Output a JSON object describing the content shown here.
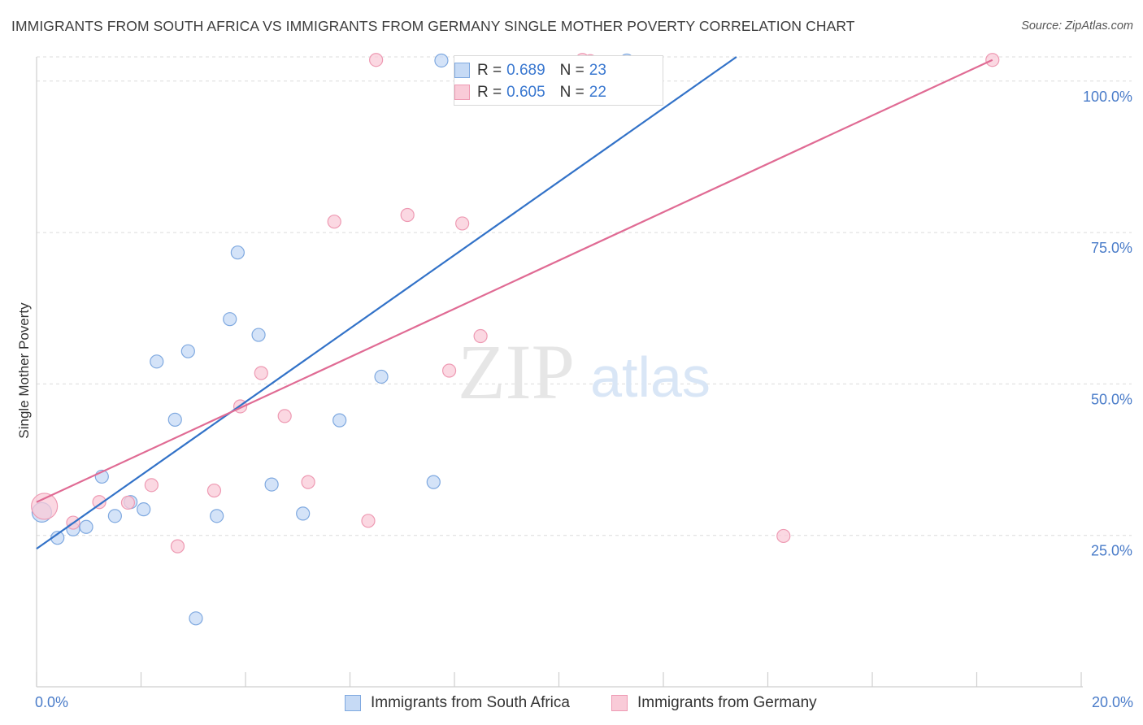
{
  "header": {
    "title": "IMMIGRANTS FROM SOUTH AFRICA VS IMMIGRANTS FROM GERMANY SINGLE MOTHER POVERTY CORRELATION CHART",
    "source": "Source: ZipAtlas.com"
  },
  "watermark": {
    "zip": "ZIP",
    "atlas": "atlas"
  },
  "legend_top": {
    "rows": [
      {
        "r_label": "R = ",
        "r_value": "0.689",
        "n_label": "N = ",
        "n_value": "23"
      },
      {
        "r_label": "R = ",
        "r_value": "0.605",
        "n_label": "N = ",
        "n_value": "22"
      }
    ]
  },
  "colors": {
    "blue_fill": "#c6daf5",
    "blue_stroke": "#7fa9e0",
    "blue_line": "#3272c8",
    "pink_fill": "#f9cbd8",
    "pink_stroke": "#ee9ab3",
    "pink_line": "#e06b94",
    "tick_text": "#4a7cc9",
    "grid": "#dcdcdc"
  },
  "chart_data": {
    "type": "scatter",
    "title": "IMMIGRANTS FROM SOUTH AFRICA VS IMMIGRANTS FROM GERMANY SINGLE MOTHER POVERTY CORRELATION CHART",
    "xlabel": "",
    "ylabel": "Single Mother Poverty",
    "xlim": [
      0,
      20
    ],
    "ylim": [
      0,
      104
    ],
    "x_ticks": [
      0,
      2,
      4,
      6,
      8,
      10,
      12,
      14,
      16,
      18,
      20
    ],
    "x_tick_labels": [
      {
        "value": 0,
        "label": "0.0%"
      },
      {
        "value": 20,
        "label": "20.0%"
      }
    ],
    "y_ticks": [
      {
        "value": 25,
        "label": "25.0%"
      },
      {
        "value": 50,
        "label": "50.0%"
      },
      {
        "value": 75,
        "label": "75.0%"
      },
      {
        "value": 100,
        "label": "100.0%"
      }
    ],
    "grid": true,
    "legend_placement": "top-center",
    "series": [
      {
        "name": "Immigrants from South Africa",
        "color": "#7fa9e0",
        "R": 0.689,
        "N": 23,
        "trend": {
          "x": [
            0,
            13.4
          ],
          "y": [
            22.8,
            104
          ]
        },
        "points": [
          {
            "x": 0.1,
            "y": 28.8,
            "size": 12
          },
          {
            "x": 0.4,
            "y": 24.6
          },
          {
            "x": 0.7,
            "y": 26.0
          },
          {
            "x": 0.95,
            "y": 26.4
          },
          {
            "x": 1.25,
            "y": 34.7
          },
          {
            "x": 1.5,
            "y": 28.2
          },
          {
            "x": 1.8,
            "y": 30.5
          },
          {
            "x": 2.05,
            "y": 29.3
          },
          {
            "x": 2.3,
            "y": 53.7
          },
          {
            "x": 2.65,
            "y": 44.1
          },
          {
            "x": 2.9,
            "y": 55.4
          },
          {
            "x": 3.05,
            "y": 11.3
          },
          {
            "x": 3.45,
            "y": 28.2
          },
          {
            "x": 3.7,
            "y": 60.7
          },
          {
            "x": 3.85,
            "y": 71.7
          },
          {
            "x": 4.25,
            "y": 58.1
          },
          {
            "x": 4.5,
            "y": 33.4
          },
          {
            "x": 5.1,
            "y": 28.6
          },
          {
            "x": 5.8,
            "y": 44.0
          },
          {
            "x": 6.6,
            "y": 51.2
          },
          {
            "x": 7.6,
            "y": 33.8
          },
          {
            "x": 7.75,
            "y": 103.4
          },
          {
            "x": 11.3,
            "y": 103.4
          }
        ]
      },
      {
        "name": "Immigrants from Germany",
        "color": "#ee9ab3",
        "R": 0.605,
        "N": 22,
        "trend": {
          "x": [
            0,
            18.3
          ],
          "y": [
            30.5,
            103.5
          ]
        },
        "points": [
          {
            "x": 0.15,
            "y": 29.8,
            "size": 16
          },
          {
            "x": 0.7,
            "y": 27.1
          },
          {
            "x": 1.2,
            "y": 30.5
          },
          {
            "x": 1.75,
            "y": 30.4
          },
          {
            "x": 2.2,
            "y": 33.3
          },
          {
            "x": 2.7,
            "y": 23.2
          },
          {
            "x": 3.4,
            "y": 32.4
          },
          {
            "x": 3.9,
            "y": 46.3
          },
          {
            "x": 4.3,
            "y": 51.8
          },
          {
            "x": 4.75,
            "y": 44.7
          },
          {
            "x": 5.2,
            "y": 33.8
          },
          {
            "x": 5.7,
            "y": 76.8
          },
          {
            "x": 6.35,
            "y": 27.4
          },
          {
            "x": 6.5,
            "y": 103.5
          },
          {
            "x": 7.1,
            "y": 77.9
          },
          {
            "x": 7.9,
            "y": 52.2
          },
          {
            "x": 8.15,
            "y": 76.5
          },
          {
            "x": 8.5,
            "y": 57.9
          },
          {
            "x": 10.45,
            "y": 103.5
          },
          {
            "x": 10.6,
            "y": 103.3
          },
          {
            "x": 14.3,
            "y": 24.9
          },
          {
            "x": 18.3,
            "y": 103.5
          }
        ]
      }
    ]
  }
}
